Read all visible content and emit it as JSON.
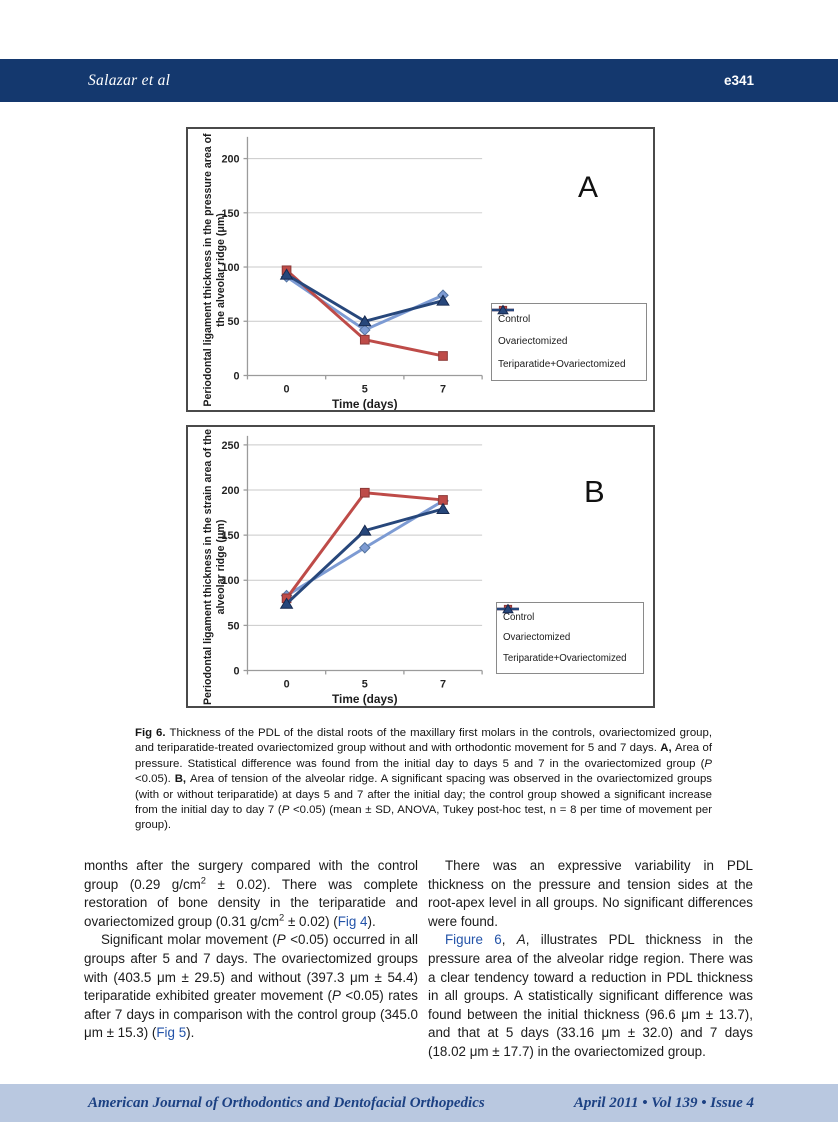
{
  "colors": {
    "header_bar": "#14386e",
    "footer_bar": "#b9c8e0",
    "footer_text": "#1c4183",
    "link": "#2353a8",
    "chart_border": "#4a4a4a",
    "gridline": "#c9c9c9",
    "axis": "#9b9b9b"
  },
  "header": {
    "author": "Salazar et al",
    "page_number": "e341"
  },
  "footer": {
    "journal": "American Journal of Orthodontics and Dentofacial Orthopedics",
    "issue": "April 2011 • Vol 139 • Issue 4"
  },
  "chart_data": [
    {
      "id": "A",
      "type": "line",
      "panel_label": "A",
      "title": "",
      "xlabel": "Time (days)",
      "ylabel": "Periodontal ligament thickness in the pressure area of the alveolar ridge (μm)",
      "ylabel_lines": [
        "Periodontal ligament thickness in the pressure area of",
        "the alveolar ridge (μm)"
      ],
      "categories": [
        "0",
        "5",
        "7"
      ],
      "yticks": [
        0,
        50,
        100,
        150,
        200
      ],
      "ylim": [
        0,
        220
      ],
      "grid": true,
      "legend_position": "right",
      "series": [
        {
          "name": "Control",
          "marker": "diamond",
          "color": "#7d9bd3",
          "edge": "#54749f",
          "values": [
            91,
            42,
            74
          ]
        },
        {
          "name": "Ovariectomized",
          "marker": "square",
          "color": "#be4b48",
          "edge": "#8c3836",
          "values": [
            97,
            33,
            18
          ]
        },
        {
          "name": "Teriparatide+Ovariectomized",
          "marker": "triangle",
          "color": "#27477b",
          "edge": "#16294f",
          "values": [
            93,
            50,
            69
          ]
        }
      ]
    },
    {
      "id": "B",
      "type": "line",
      "panel_label": "B",
      "title": "",
      "xlabel": "Time (days)",
      "ylabel": "Periodontal ligament thickness in the strain area of the alveolar ridge (μm)",
      "ylabel_lines": [
        "Periodontal ligament thickness in the strain area of the",
        "alveolar ridge (μm)"
      ],
      "categories": [
        "0",
        "5",
        "7"
      ],
      "yticks": [
        0,
        50,
        100,
        150,
        200,
        250
      ],
      "ylim": [
        0,
        260
      ],
      "grid": true,
      "legend_position": "right",
      "series": [
        {
          "name": "Control",
          "marker": "diamond",
          "color": "#7d9bd3",
          "edge": "#54749f",
          "values": [
            83,
            136,
            188
          ]
        },
        {
          "name": "Ovariectomized",
          "marker": "square",
          "color": "#be4b48",
          "edge": "#8c3836",
          "values": [
            80,
            197,
            189
          ]
        },
        {
          "name": "Teriparatide+Ovariectomized",
          "marker": "triangle",
          "color": "#27477b",
          "edge": "#16294f",
          "values": [
            74,
            155,
            179
          ]
        }
      ]
    }
  ],
  "caption": {
    "segments": [
      {
        "t": "Fig 6. ",
        "b": 1
      },
      {
        "t": "Thickness of the PDL of the distal roots of the maxillary first molars in the controls, ovariectomized group, and teriparatide-treated ovariectomized group without and with orthodontic movement for 5 and 7 days. "
      },
      {
        "t": "A, ",
        "b": 1
      },
      {
        "t": "Area of pressure. Statistical difference was found from the initial day to days 5 and 7 in the ovariectomized group ("
      },
      {
        "t": "P",
        "i": 1
      },
      {
        "t": " <0.05). "
      },
      {
        "t": "B, ",
        "b": 1
      },
      {
        "t": "Area of tension of the alveolar ridge. A significant spacing was observed in the ovariectomized groups (with or without teriparatide) at days 5 and 7 after the initial day; the control group showed a significant increase from the initial day to day 7 ("
      },
      {
        "t": "P",
        "i": 1
      },
      {
        "t": " <0.05) (mean ± SD, ANOVA, Tukey post-hoc test, n = 8 per time of movement per group)."
      }
    ]
  },
  "body": {
    "left_column": [
      {
        "indent": false,
        "segments": [
          {
            "t": "months after the surgery compared with the control group (0.29 g/cm"
          },
          {
            "t": "2",
            "sup": 1
          },
          {
            "t": " ± 0.02). There was complete restoration of bone density in the teriparatide and ovariectomized group (0.31 g/cm"
          },
          {
            "t": "2",
            "sup": 1
          },
          {
            "t": " ± 0.02) ("
          },
          {
            "t": "Fig 4",
            "link": 1
          },
          {
            "t": ")."
          }
        ]
      },
      {
        "indent": true,
        "segments": [
          {
            "t": "Significant molar movement ("
          },
          {
            "t": "P",
            "i": 1
          },
          {
            "t": " <0.05) occurred in all groups after 5 and 7 days. The ovariectomized groups with (403.5 μm ± 29.5) and without (397.3 μm ± 54.4) teriparatide exhibited greater movement ("
          },
          {
            "t": "P",
            "i": 1
          },
          {
            "t": " <0.05) rates after 7 days in comparison with the control group (345.0 μm ± 15.3) ("
          },
          {
            "t": "Fig 5",
            "link": 1
          },
          {
            "t": ")."
          }
        ]
      }
    ],
    "right_column": [
      {
        "indent": true,
        "segments": [
          {
            "t": "There was an expressive variability in PDL thickness on the pressure and tension sides at the root-apex level in all groups. No significant differences were found."
          }
        ]
      },
      {
        "indent": true,
        "segments": [
          {
            "t": "Figure 6",
            "link": 1
          },
          {
            "t": ", "
          },
          {
            "t": "A",
            "i": 1
          },
          {
            "t": ", illustrates PDL thickness in the pressure area of the alveolar ridge region. There was a clear tendency toward a reduction in PDL thickness in all groups. A statistically significant difference was found between the initial thickness (96.6 μm ± 13.7), and that at 5 days (33.16 μm ± 32.0) and 7 days (18.02 μm ± 17.7) in the ovariectomized group."
          }
        ]
      }
    ]
  }
}
